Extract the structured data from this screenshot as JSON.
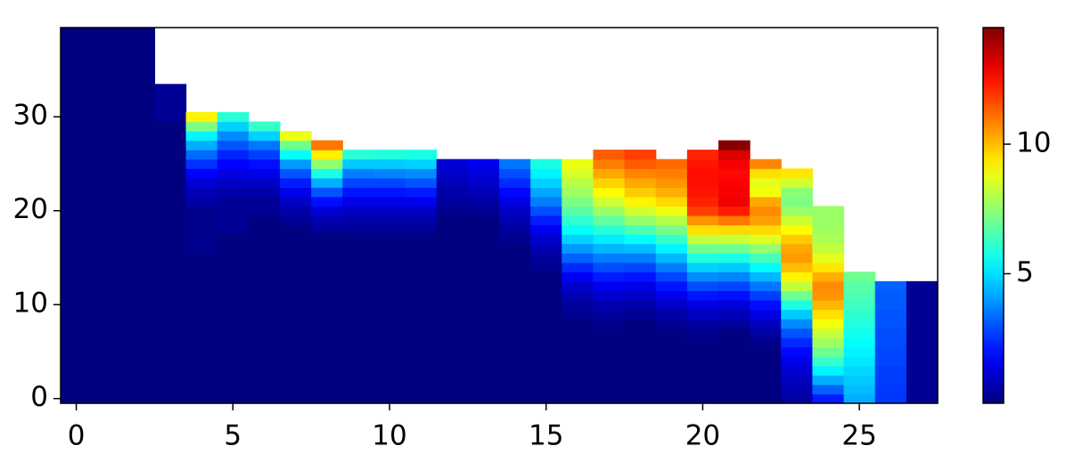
{
  "chart_data": {
    "type": "heatmap",
    "colormap": "jet",
    "xlim": [
      -0.5,
      27.5
    ],
    "ylim": [
      -0.5,
      39.5
    ],
    "xticks": [
      0,
      5,
      10,
      15,
      20,
      25
    ],
    "yticks": [
      0,
      10,
      20,
      30
    ],
    "clim": [
      0,
      14.5
    ],
    "colorbar_ticks": [
      5,
      10
    ],
    "values": [
      [
        0,
        0,
        0,
        0,
        0,
        0,
        0,
        0,
        0,
        0,
        0,
        0,
        0,
        0,
        0,
        0,
        0,
        0,
        0,
        0,
        0,
        0,
        0,
        0,
        0,
        0,
        0,
        0,
        0,
        0,
        0,
        0,
        0,
        0,
        0,
        0,
        0,
        0,
        0,
        0
      ],
      [
        0,
        0,
        0,
        0,
        0,
        0,
        0,
        0,
        0,
        0,
        0,
        0,
        0,
        0,
        0,
        0,
        0,
        0,
        0,
        0,
        0,
        0,
        0,
        0,
        0,
        0,
        0,
        0,
        0,
        0,
        0,
        0,
        0,
        0,
        0,
        0,
        0,
        0,
        0,
        0
      ],
      [
        0,
        0,
        0,
        0,
        0,
        0,
        0,
        0,
        0,
        0,
        0,
        0,
        0,
        0,
        0,
        0,
        0,
        0,
        0,
        0,
        0,
        0,
        0,
        0,
        0,
        0,
        0,
        0,
        0,
        0,
        0,
        0,
        0,
        0,
        0,
        0,
        0,
        0,
        0,
        0
      ],
      [
        0,
        0,
        0,
        0,
        0,
        0,
        0,
        0,
        0,
        0,
        0,
        0,
        0,
        0,
        0,
        0,
        0,
        0,
        0,
        0,
        0,
        0,
        0,
        0,
        0,
        0,
        0,
        0,
        0,
        0,
        0.3,
        0.3,
        0.3,
        0.3,
        null,
        null,
        null,
        null,
        null,
        null
      ],
      [
        0,
        0,
        0,
        0,
        0,
        0,
        0,
        0,
        0,
        0,
        0,
        0,
        0,
        0,
        0,
        0,
        0.2,
        0.2,
        0.2,
        0.2,
        0.2,
        0.5,
        0.8,
        1.2,
        1.8,
        2.5,
        3.3,
        4.3,
        5.3,
        7.2,
        9.2,
        null,
        null,
        null,
        null,
        null,
        null,
        null,
        null,
        null
      ],
      [
        0,
        0,
        0,
        0,
        0,
        0,
        0,
        0,
        0,
        0,
        0,
        0,
        0,
        0,
        0,
        0,
        0,
        0,
        0.3,
        0.3,
        0.3,
        0.3,
        0.6,
        1,
        1.4,
        1.8,
        2.3,
        3,
        3.8,
        4.8,
        6,
        null,
        null,
        null,
        null,
        null,
        null,
        null,
        null,
        null
      ],
      [
        0,
        0,
        0,
        0,
        0,
        0,
        0,
        0,
        0,
        0,
        0,
        0,
        0,
        0,
        0,
        0,
        0,
        0,
        0,
        0,
        0.3,
        0.3,
        0.6,
        1,
        1.5,
        2,
        2.7,
        3.5,
        4.8,
        6.2,
        null,
        null,
        null,
        null,
        null,
        null,
        null,
        null,
        null,
        null
      ],
      [
        0,
        0,
        0,
        0,
        0,
        0,
        0,
        0,
        0,
        0,
        0,
        0,
        0,
        0,
        0,
        0,
        0,
        0,
        0,
        0.3,
        0.6,
        1,
        1.5,
        2.2,
        3,
        4,
        5.5,
        7,
        8.8,
        null,
        null,
        null,
        null,
        null,
        null,
        null,
        null,
        null,
        null,
        null
      ],
      [
        0,
        0,
        0,
        0,
        0,
        0,
        0,
        0,
        0,
        0,
        0,
        0,
        0,
        0,
        0,
        0,
        0,
        0,
        0.3,
        0.7,
        1.2,
        2,
        3,
        4.3,
        5.8,
        7.5,
        9.3,
        11,
        null,
        null,
        null,
        null,
        null,
        null,
        null,
        null,
        null,
        null,
        null,
        null
      ],
      [
        0,
        0,
        0,
        0,
        0,
        0,
        0,
        0,
        0,
        0,
        0,
        0,
        0,
        0,
        0,
        0,
        0,
        0,
        0.3,
        0.6,
        1,
        1.5,
        2.1,
        2.8,
        3.6,
        4.7,
        6,
        null,
        null,
        null,
        null,
        null,
        null,
        null,
        null,
        null,
        null,
        null,
        null,
        null
      ],
      [
        0,
        0,
        0,
        0,
        0,
        0,
        0,
        0,
        0,
        0,
        0,
        0,
        0,
        0,
        0,
        0,
        0,
        0,
        0.3,
        0.6,
        1,
        1.5,
        2.1,
        2.8,
        3.7,
        4.7,
        5.9,
        null,
        null,
        null,
        null,
        null,
        null,
        null,
        null,
        null,
        null,
        null,
        null,
        null
      ],
      [
        0,
        0,
        0,
        0,
        0,
        0,
        0,
        0,
        0,
        0,
        0,
        0,
        0,
        0,
        0,
        0,
        0,
        0,
        0.3,
        0.6,
        1,
        1.6,
        2.2,
        3,
        3.8,
        4.8,
        5.8,
        null,
        null,
        null,
        null,
        null,
        null,
        null,
        null,
        null,
        null,
        null,
        null,
        null
      ],
      [
        0,
        0,
        0,
        0,
        0,
        0,
        0,
        0,
        0,
        0,
        0,
        0,
        0,
        0,
        0,
        0,
        0,
        0,
        0,
        0,
        0.2,
        0.4,
        0.6,
        0.8,
        1,
        1.2,
        null,
        null,
        null,
        null,
        null,
        null,
        null,
        null,
        null,
        null,
        null,
        null,
        null,
        null
      ],
      [
        0,
        0,
        0,
        0,
        0,
        0,
        0,
        0,
        0,
        0,
        0,
        0,
        0,
        0,
        0,
        0,
        0,
        0,
        0,
        0,
        0.3,
        0.5,
        0.8,
        1,
        1.3,
        1.6,
        null,
        null,
        null,
        null,
        null,
        null,
        null,
        null,
        null,
        null,
        null,
        null,
        null,
        null
      ],
      [
        0,
        0,
        0,
        0,
        0,
        0,
        0,
        0,
        0,
        0,
        0,
        0,
        0,
        0,
        0,
        0,
        0,
        0.2,
        0.4,
        0.7,
        1,
        1.4,
        1.9,
        2.4,
        2.9,
        3.5,
        null,
        null,
        null,
        null,
        null,
        null,
        null,
        null,
        null,
        null,
        null,
        null,
        null,
        null
      ],
      [
        0,
        0,
        0,
        0,
        0,
        0,
        0,
        0,
        0,
        0,
        0,
        0,
        0,
        0,
        0.2,
        0.4,
        0.7,
        1.1,
        1.6,
        2.2,
        2.9,
        3.6,
        4.2,
        4.8,
        5.3,
        5.8,
        null,
        null,
        null,
        null,
        null,
        null,
        null,
        null,
        null,
        null,
        null,
        null,
        null,
        null
      ],
      [
        0,
        0,
        0,
        0,
        0,
        0,
        0,
        0,
        0,
        0.2,
        0.4,
        0.7,
        1.1,
        1.7,
        2.4,
        3.2,
        4,
        4.8,
        5.5,
        6.1,
        6.7,
        7.2,
        7.7,
        8.1,
        8.5,
        8.8,
        null,
        null,
        null,
        null,
        null,
        null,
        null,
        null,
        null,
        null,
        null,
        null,
        null,
        null
      ],
      [
        0,
        0,
        0,
        0,
        0,
        0,
        0,
        0,
        0.2,
        0.4,
        0.7,
        1.1,
        1.6,
        2.2,
        2.9,
        3.6,
        4.4,
        5.2,
        6,
        6.8,
        7.6,
        8.4,
        9.1,
        9.7,
        10.3,
        10.9,
        11.4,
        null,
        null,
        null,
        null,
        null,
        null,
        null,
        null,
        null,
        null,
        null,
        null,
        null
      ],
      [
        0,
        0,
        0,
        0,
        0,
        0,
        0,
        0,
        0,
        0.3,
        0.6,
        1,
        1.5,
        2.1,
        2.8,
        3.6,
        4.5,
        5.5,
        6.5,
        7.5,
        8.4,
        9.2,
        9.8,
        10.3,
        10.8,
        11.4,
        11.8,
        null,
        null,
        null,
        null,
        null,
        null,
        null,
        null,
        null,
        null,
        null,
        null,
        null
      ],
      [
        0,
        0,
        0,
        0,
        0,
        0,
        0,
        0,
        0.3,
        0.6,
        1,
        1.5,
        2.1,
        2.8,
        3.6,
        4.4,
        5.3,
        6.2,
        7.1,
        8,
        8.8,
        9.6,
        10.2,
        10.6,
        10.9,
        11.2,
        null,
        null,
        null,
        null,
        null,
        null,
        null,
        null,
        null,
        null,
        null,
        null,
        null,
        null
      ],
      [
        0,
        0,
        0,
        0,
        0,
        0,
        0,
        0.2,
        0.5,
        0.9,
        1.4,
        2.1,
        2.9,
        3.8,
        4.8,
        5.9,
        7,
        8.2,
        9.5,
        10.6,
        11.8,
        12.2,
        12.4,
        12.5,
        12.5,
        12.4,
        12.2,
        null,
        null,
        null,
        null,
        null,
        null,
        null,
        null,
        null,
        null,
        null,
        null,
        null
      ],
      [
        0,
        0,
        0,
        0,
        0,
        0,
        0,
        0,
        0.4,
        0.8,
        1.3,
        2,
        2.8,
        3.7,
        4.7,
        5.8,
        7,
        8.3,
        9.6,
        11,
        12.3,
        12.9,
        12.8,
        12.7,
        12.6,
        12.8,
        13.2,
        14.4,
        null,
        null,
        null,
        null,
        null,
        null,
        null,
        null,
        null,
        null,
        null,
        null
      ],
      [
        0,
        0,
        0,
        0,
        0,
        0,
        0.2,
        0.5,
        0.9,
        1.4,
        2,
        2.7,
        3.5,
        4.4,
        5.4,
        6.4,
        7.5,
        8.6,
        9.6,
        10.4,
        10.7,
        10.3,
        8.9,
        8.7,
        9.5,
        10.8,
        null,
        null,
        null,
        null,
        null,
        null,
        null,
        null,
        null,
        null,
        null,
        null,
        null,
        null
      ],
      [
        0.5,
        0.7,
        0.9,
        1.2,
        1.5,
        1.9,
        2.4,
        3,
        3.8,
        4.7,
        5.8,
        7,
        8.2,
        9.2,
        10,
        10.5,
        10.3,
        9.8,
        9.1,
        8.4,
        7.6,
        7.2,
        7.4,
        8.4,
        9.4,
        null,
        null,
        null,
        null,
        null,
        null,
        null,
        null,
        null,
        null,
        null,
        null,
        null,
        null,
        null
      ],
      [
        2.2,
        3.2,
        4.3,
        5.3,
        6.2,
        7,
        7.7,
        8.3,
        8.9,
        9.5,
        10.1,
        10.6,
        10.7,
        10.2,
        9.4,
        8.7,
        8.2,
        7.9,
        7.7,
        7.6,
        7.6,
        null,
        null,
        null,
        null,
        null,
        null,
        null,
        null,
        null,
        null,
        null,
        null,
        null,
        null,
        null,
        null,
        null,
        null,
        null
      ],
      [
        4.3,
        4.5,
        4.7,
        4.9,
        5.1,
        5.3,
        5.5,
        5.7,
        5.9,
        6.1,
        6.3,
        6.5,
        6.7,
        7,
        null,
        null,
        null,
        null,
        null,
        null,
        null,
        null,
        null,
        null,
        null,
        null,
        null,
        null,
        null,
        null,
        null,
        null,
        null,
        null,
        null,
        null,
        null,
        null,
        null,
        null
      ],
      [
        2.6,
        2.6,
        2.7,
        2.7,
        2.8,
        2.8,
        2.9,
        2.9,
        3,
        3,
        3.1,
        3.1,
        3.2,
        null,
        null,
        null,
        null,
        null,
        null,
        null,
        null,
        null,
        null,
        null,
        null,
        null,
        null,
        null,
        null,
        null,
        null,
        null,
        null,
        null,
        null,
        null,
        null,
        null,
        null,
        null
      ],
      [
        0.3,
        0.3,
        0.3,
        0.3,
        0.3,
        0.3,
        0.3,
        0.3,
        0.3,
        0.3,
        0.3,
        0.3,
        0.3,
        null,
        null,
        null,
        null,
        null,
        null,
        null,
        null,
        null,
        null,
        null,
        null,
        null,
        null,
        null,
        null,
        null,
        null,
        null,
        null,
        null,
        null,
        null,
        null,
        null,
        null,
        null
      ]
    ]
  }
}
